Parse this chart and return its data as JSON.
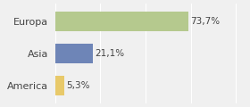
{
  "categories": [
    "Europa",
    "Asia",
    "America"
  ],
  "values": [
    73.7,
    21.1,
    5.3
  ],
  "labels": [
    "73,7%",
    "21,1%",
    "5,3%"
  ],
  "bar_colors": [
    "#b5c98e",
    "#6e85b7",
    "#e8c96a"
  ],
  "background_color": "#f0f0f0",
  "xlim": [
    0,
    105
  ],
  "bar_height": 0.6,
  "label_fontsize": 7.5,
  "category_fontsize": 8
}
